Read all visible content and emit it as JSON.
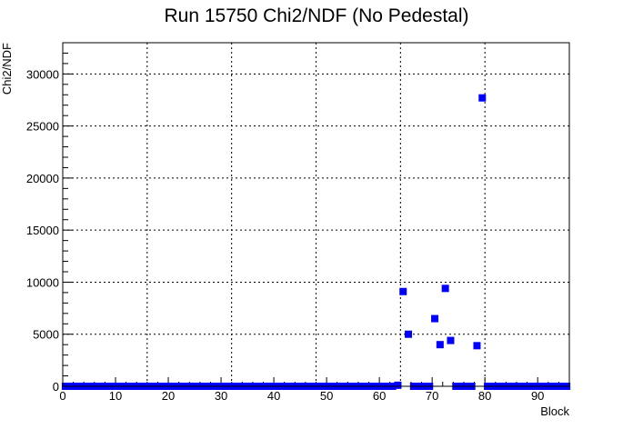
{
  "chart_data": {
    "type": "scatter",
    "title": "Run 15750 Chi2/NDF (No Pedestal)",
    "xlabel": "Block",
    "ylabel": "Chi2/NDF",
    "xlim": [
      0,
      96
    ],
    "ylim": [
      0,
      33000
    ],
    "x_ticks": [
      0,
      10,
      20,
      30,
      40,
      50,
      60,
      70,
      80,
      90
    ],
    "y_ticks": [
      0,
      5000,
      10000,
      15000,
      20000,
      25000,
      30000
    ],
    "x_grid": [
      16,
      32,
      48,
      64,
      80
    ],
    "y_grid": [
      5000,
      10000,
      15000,
      20000,
      25000,
      30000
    ],
    "marker_color": "#0000ff",
    "points": [
      {
        "x": 0,
        "y": 0
      },
      {
        "x": 1,
        "y": 0
      },
      {
        "x": 2,
        "y": 0
      },
      {
        "x": 3,
        "y": 0
      },
      {
        "x": 4,
        "y": 0
      },
      {
        "x": 5,
        "y": 0
      },
      {
        "x": 6,
        "y": 0
      },
      {
        "x": 7,
        "y": 0
      },
      {
        "x": 8,
        "y": 0
      },
      {
        "x": 9,
        "y": 0
      },
      {
        "x": 10,
        "y": 0
      },
      {
        "x": 11,
        "y": 0
      },
      {
        "x": 12,
        "y": 0
      },
      {
        "x": 13,
        "y": 0
      },
      {
        "x": 14,
        "y": 0
      },
      {
        "x": 15,
        "y": 0
      },
      {
        "x": 16,
        "y": 0
      },
      {
        "x": 17,
        "y": 0
      },
      {
        "x": 18,
        "y": 0
      },
      {
        "x": 19,
        "y": 0
      },
      {
        "x": 20,
        "y": 0
      },
      {
        "x": 21,
        "y": 0
      },
      {
        "x": 22,
        "y": 0
      },
      {
        "x": 23,
        "y": 0
      },
      {
        "x": 24,
        "y": 0
      },
      {
        "x": 25,
        "y": 0
      },
      {
        "x": 26,
        "y": 0
      },
      {
        "x": 27,
        "y": 0
      },
      {
        "x": 28,
        "y": 0
      },
      {
        "x": 29,
        "y": 0
      },
      {
        "x": 30,
        "y": 0
      },
      {
        "x": 31,
        "y": 0
      },
      {
        "x": 32,
        "y": 0
      },
      {
        "x": 33,
        "y": 0
      },
      {
        "x": 34,
        "y": 0
      },
      {
        "x": 35,
        "y": 0
      },
      {
        "x": 36,
        "y": 0
      },
      {
        "x": 37,
        "y": 0
      },
      {
        "x": 38,
        "y": 0
      },
      {
        "x": 39,
        "y": 0
      },
      {
        "x": 40,
        "y": 0
      },
      {
        "x": 41,
        "y": 0
      },
      {
        "x": 42,
        "y": 0
      },
      {
        "x": 43,
        "y": 0
      },
      {
        "x": 44,
        "y": 0
      },
      {
        "x": 45,
        "y": 0
      },
      {
        "x": 46,
        "y": 0
      },
      {
        "x": 47,
        "y": 0
      },
      {
        "x": 48,
        "y": 0
      },
      {
        "x": 49,
        "y": 0
      },
      {
        "x": 50,
        "y": 0
      },
      {
        "x": 51,
        "y": 0
      },
      {
        "x": 52,
        "y": 0
      },
      {
        "x": 53,
        "y": 0
      },
      {
        "x": 54,
        "y": 0
      },
      {
        "x": 55,
        "y": 0
      },
      {
        "x": 56,
        "y": 0
      },
      {
        "x": 57,
        "y": 0
      },
      {
        "x": 58,
        "y": 0
      },
      {
        "x": 59,
        "y": 0
      },
      {
        "x": 60,
        "y": 0
      },
      {
        "x": 61,
        "y": 0
      },
      {
        "x": 62,
        "y": 0
      },
      {
        "x": 63,
        "y": 100
      },
      {
        "x": 64,
        "y": 9100
      },
      {
        "x": 65,
        "y": 5000
      },
      {
        "x": 66,
        "y": 0
      },
      {
        "x": 67,
        "y": 0
      },
      {
        "x": 68,
        "y": 0
      },
      {
        "x": 69,
        "y": 0
      },
      {
        "x": 70,
        "y": 6500
      },
      {
        "x": 71,
        "y": 4000
      },
      {
        "x": 72,
        "y": 9400
      },
      {
        "x": 73,
        "y": 4400
      },
      {
        "x": 74,
        "y": 0
      },
      {
        "x": 75,
        "y": 0
      },
      {
        "x": 76,
        "y": 0
      },
      {
        "x": 77,
        "y": 0
      },
      {
        "x": 78,
        "y": 3900
      },
      {
        "x": 79,
        "y": 27700
      },
      {
        "x": 80,
        "y": 0
      },
      {
        "x": 81,
        "y": 0
      },
      {
        "x": 82,
        "y": 0
      },
      {
        "x": 83,
        "y": 0
      },
      {
        "x": 84,
        "y": 0
      },
      {
        "x": 85,
        "y": 0
      },
      {
        "x": 86,
        "y": 0
      },
      {
        "x": 87,
        "y": 0
      },
      {
        "x": 88,
        "y": 0
      },
      {
        "x": 89,
        "y": 0
      },
      {
        "x": 90,
        "y": 0
      },
      {
        "x": 91,
        "y": 0
      },
      {
        "x": 92,
        "y": 0
      },
      {
        "x": 93,
        "y": 0
      },
      {
        "x": 94,
        "y": 0
      },
      {
        "x": 95,
        "y": 0
      }
    ]
  }
}
